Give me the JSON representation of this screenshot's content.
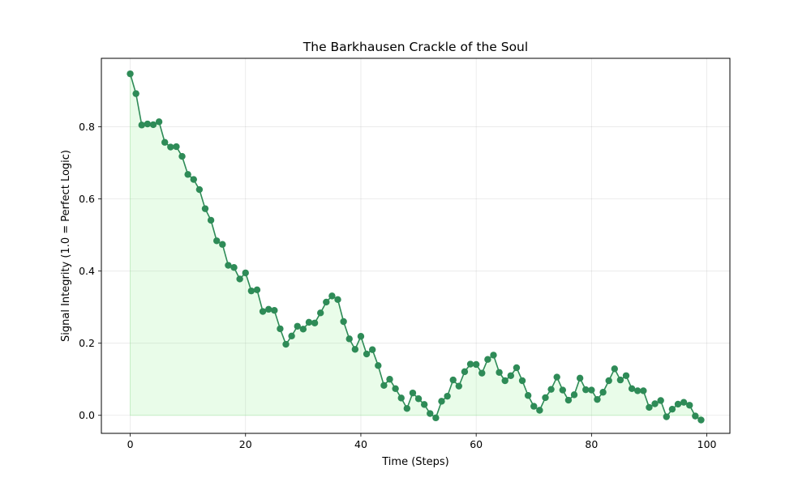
{
  "chart_data": {
    "type": "line",
    "title": "The Barkhausen Crackle of the Soul",
    "xlabel": "Time (Steps)",
    "ylabel": "Signal Integrity (1.0 = Perfect Logic)",
    "xlim": [
      -5,
      104
    ],
    "ylim": [
      -0.05,
      0.99
    ],
    "xticks": [
      0,
      20,
      40,
      60,
      80,
      100
    ],
    "yticks": [
      0.0,
      0.2,
      0.4,
      0.6,
      0.8
    ],
    "xtick_labels": [
      "0",
      "20",
      "40",
      "60",
      "80",
      "100"
    ],
    "ytick_labels": [
      "0.0",
      "0.2",
      "0.4",
      "0.6",
      "0.8"
    ],
    "grid": true,
    "line_color": "#2e8b57",
    "fill_color": "#90ee90",
    "series": [
      {
        "x": [
          0,
          1,
          2,
          3,
          4,
          5,
          6,
          7,
          8,
          9,
          10,
          11,
          12,
          13,
          14,
          15,
          16,
          17,
          18,
          19,
          20,
          21,
          22,
          23,
          24,
          25,
          26,
          27,
          28,
          29,
          30,
          31,
          32,
          33,
          34,
          35,
          36,
          37,
          38,
          39,
          40,
          41,
          42,
          43,
          44,
          45,
          46,
          47,
          48,
          49,
          50,
          51,
          52,
          53,
          54,
          55,
          56,
          57,
          58,
          59,
          60,
          61,
          62,
          63,
          64,
          65,
          66,
          67,
          68,
          69,
          70,
          71,
          72,
          73,
          74,
          75,
          76,
          77,
          78,
          79,
          80,
          81,
          82,
          83,
          84,
          85,
          86,
          87,
          88,
          89,
          90,
          91,
          92,
          93,
          94,
          95,
          96,
          97,
          98,
          99
        ],
        "values": [
          0.947,
          0.892,
          0.805,
          0.808,
          0.806,
          0.814,
          0.757,
          0.744,
          0.745,
          0.718,
          0.668,
          0.654,
          0.626,
          0.573,
          0.541,
          0.484,
          0.474,
          0.416,
          0.41,
          0.378,
          0.395,
          0.345,
          0.348,
          0.288,
          0.294,
          0.291,
          0.24,
          0.197,
          0.22,
          0.247,
          0.239,
          0.258,
          0.256,
          0.284,
          0.314,
          0.331,
          0.321,
          0.26,
          0.212,
          0.183,
          0.219,
          0.17,
          0.182,
          0.138,
          0.083,
          0.1,
          0.074,
          0.048,
          0.019,
          0.062,
          0.046,
          0.03,
          0.005,
          -0.007,
          0.039,
          0.053,
          0.098,
          0.081,
          0.121,
          0.142,
          0.141,
          0.117,
          0.155,
          0.167,
          0.119,
          0.096,
          0.11,
          0.132,
          0.096,
          0.055,
          0.025,
          0.014,
          0.049,
          0.072,
          0.106,
          0.07,
          0.042,
          0.057,
          0.103,
          0.071,
          0.07,
          0.044,
          0.064,
          0.096,
          0.129,
          0.098,
          0.11,
          0.074,
          0.068,
          0.068,
          0.022,
          0.032,
          0.041,
          -0.004,
          0.017,
          0.031,
          0.036,
          0.028,
          -0.002,
          -0.013
        ]
      }
    ]
  }
}
